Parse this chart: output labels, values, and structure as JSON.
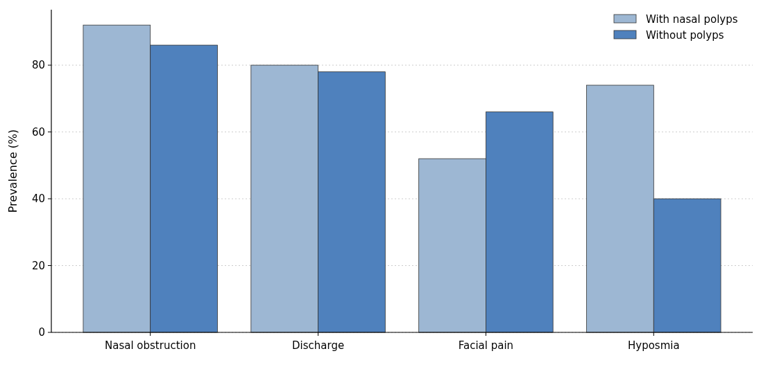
{
  "chart_data": {
    "type": "bar",
    "ylabel": "Prevalence (%)",
    "categories": [
      "Nasal obstruction",
      "Discharge",
      "Facial pain",
      "Hyposmia"
    ],
    "series": [
      {
        "name": "With nasal polyps",
        "color": "#9db7d3",
        "values": [
          92,
          80,
          52,
          74
        ]
      },
      {
        "name": "Without polyps",
        "color": "#4f81bd",
        "values": [
          86,
          78,
          66,
          40
        ]
      }
    ],
    "ylim": [
      0,
      96.6
    ],
    "yticks": [
      0,
      20,
      40,
      60,
      80
    ],
    "grid": "y",
    "legend": "top right"
  }
}
